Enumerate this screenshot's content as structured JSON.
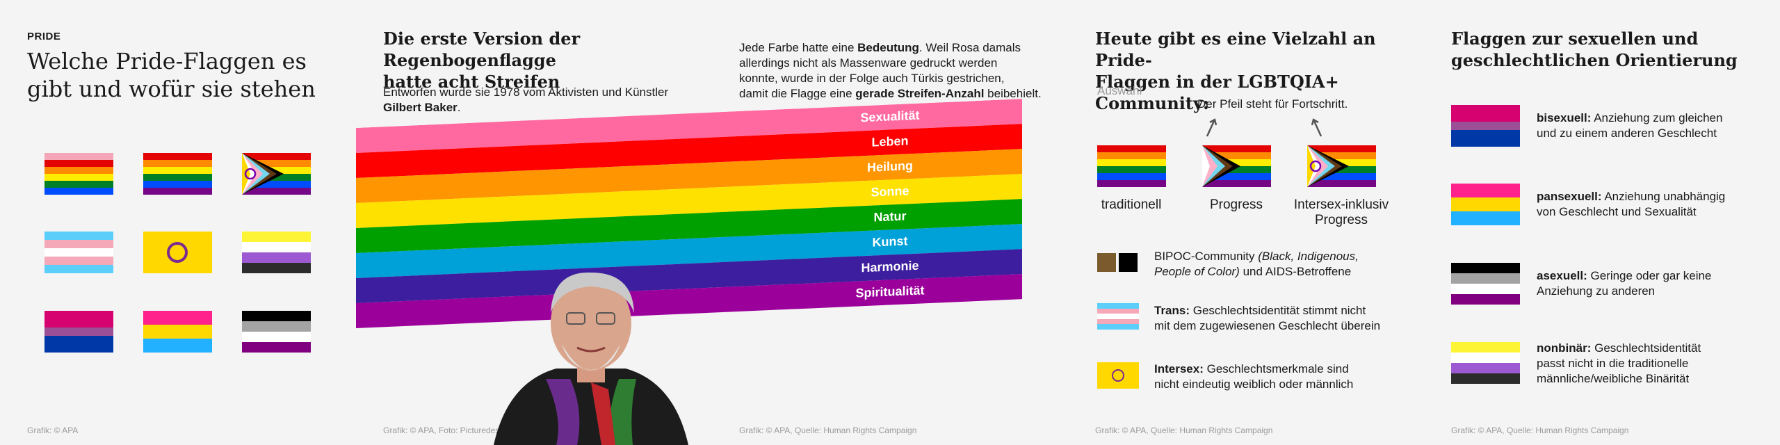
{
  "panel1": {
    "kicker": "PRIDE",
    "title_line1": "Welche Pride-Flaggen es",
    "title_line2": "gibt und wofür sie stehen",
    "credit": "Grafik: © APA"
  },
  "panel2": {
    "title_line1": "Die erste Version der Regenbogenflagge",
    "title_line2": "hatte acht Streifen",
    "text_line1": "Entworfen wurde sie 1978 vom Aktivisten und Künstler",
    "text_bold": "Gilbert Baker",
    "text_end": ".",
    "stripes": [
      {
        "label": "Sexualität",
        "color": "#ff69a0"
      },
      {
        "label": "Leben",
        "color": "#ff0000"
      },
      {
        "label": "Heilung",
        "color": "#ff9500"
      },
      {
        "label": "Sonne",
        "color": "#ffe100"
      },
      {
        "label": "Natur",
        "color": "#00a000"
      },
      {
        "label": "Kunst",
        "color": "#00a0d8"
      },
      {
        "label": "Harmonie",
        "color": "#3d1e9e"
      },
      {
        "label": "Spiritualität",
        "color": "#9b009b"
      }
    ],
    "credit": "Grafik: © APA, Foto: Picturedesk"
  },
  "panel3": {
    "l1_a": "Jede Farbe hatte eine ",
    "l1_b": "Bedeutung",
    "l1_c": ". Weil Rosa damals",
    "l2": "allerdings nicht als Massenware gedruckt werden",
    "l3": "konnte, wurde in der Folge auch Türkis gestrichen,",
    "l4_a": "damit die Flagge eine ",
    "l4_b": "gerade Streifen-Anzahl",
    "l4_c": " beibehielt.",
    "credit": "Grafik: © APA, Quelle: Human Rights Campaign"
  },
  "panel4": {
    "title_line1": "Heute gibt es eine Vielzahl an Pride-",
    "title_line2": "Flaggen in der LGBTQIA+ Community:",
    "auswahl": "Auswahl",
    "arrow_note": "Der Pfeil steht für Fortschritt.",
    "flags": [
      {
        "label1": "traditionell",
        "label2": ""
      },
      {
        "label1": "Progress",
        "label2": ""
      },
      {
        "label1": "Intersex-inklusiv",
        "label2": "Progress"
      }
    ],
    "bipoc_a": "BIPOC-Community ",
    "bipoc_b": "(Black, Indigenous,",
    "bipoc_c": "People of Color)",
    "bipoc_d": " und AIDS-Betroffene",
    "trans_bold": "Trans:",
    "trans_1": " Geschlechtsidentität stimmt nicht",
    "trans_2": "mit dem zugewiesenen Geschlecht überein",
    "intersex_bold": "Intersex:",
    "intersex_1": " Geschlechtsmerkmale sind",
    "intersex_2": "nicht eindeutig weiblich oder männlich",
    "colors": {
      "brown": "#7b5a2e",
      "black": "#000000"
    },
    "credit": "Grafik: © APA, Quelle: Human Rights Campaign"
  },
  "panel5": {
    "title_line1": "Flaggen zur sexuellen und",
    "title_line2": "geschlechtlichen Orientierung",
    "items": [
      {
        "bold": "bisexuell:",
        "l1": " Anziehung zum gleichen",
        "l2": "und zu einem anderen Geschlecht"
      },
      {
        "bold": "pansexuell:",
        "l1": " Anziehung unabhängig",
        "l2": "von Geschlecht und Sexualität"
      },
      {
        "bold": "asexuell:",
        "l1": " Geringe oder gar keine",
        "l2": "Anziehung zu anderen"
      },
      {
        "bold": "nonbinär:",
        "l1": " Geschlechtsidentität",
        "l2": "passt nicht in die traditionelle",
        "l3": "männliche/weibliche Binärität"
      }
    ],
    "credit": "Grafik: © APA, Quelle: Human Rights Campaign"
  }
}
